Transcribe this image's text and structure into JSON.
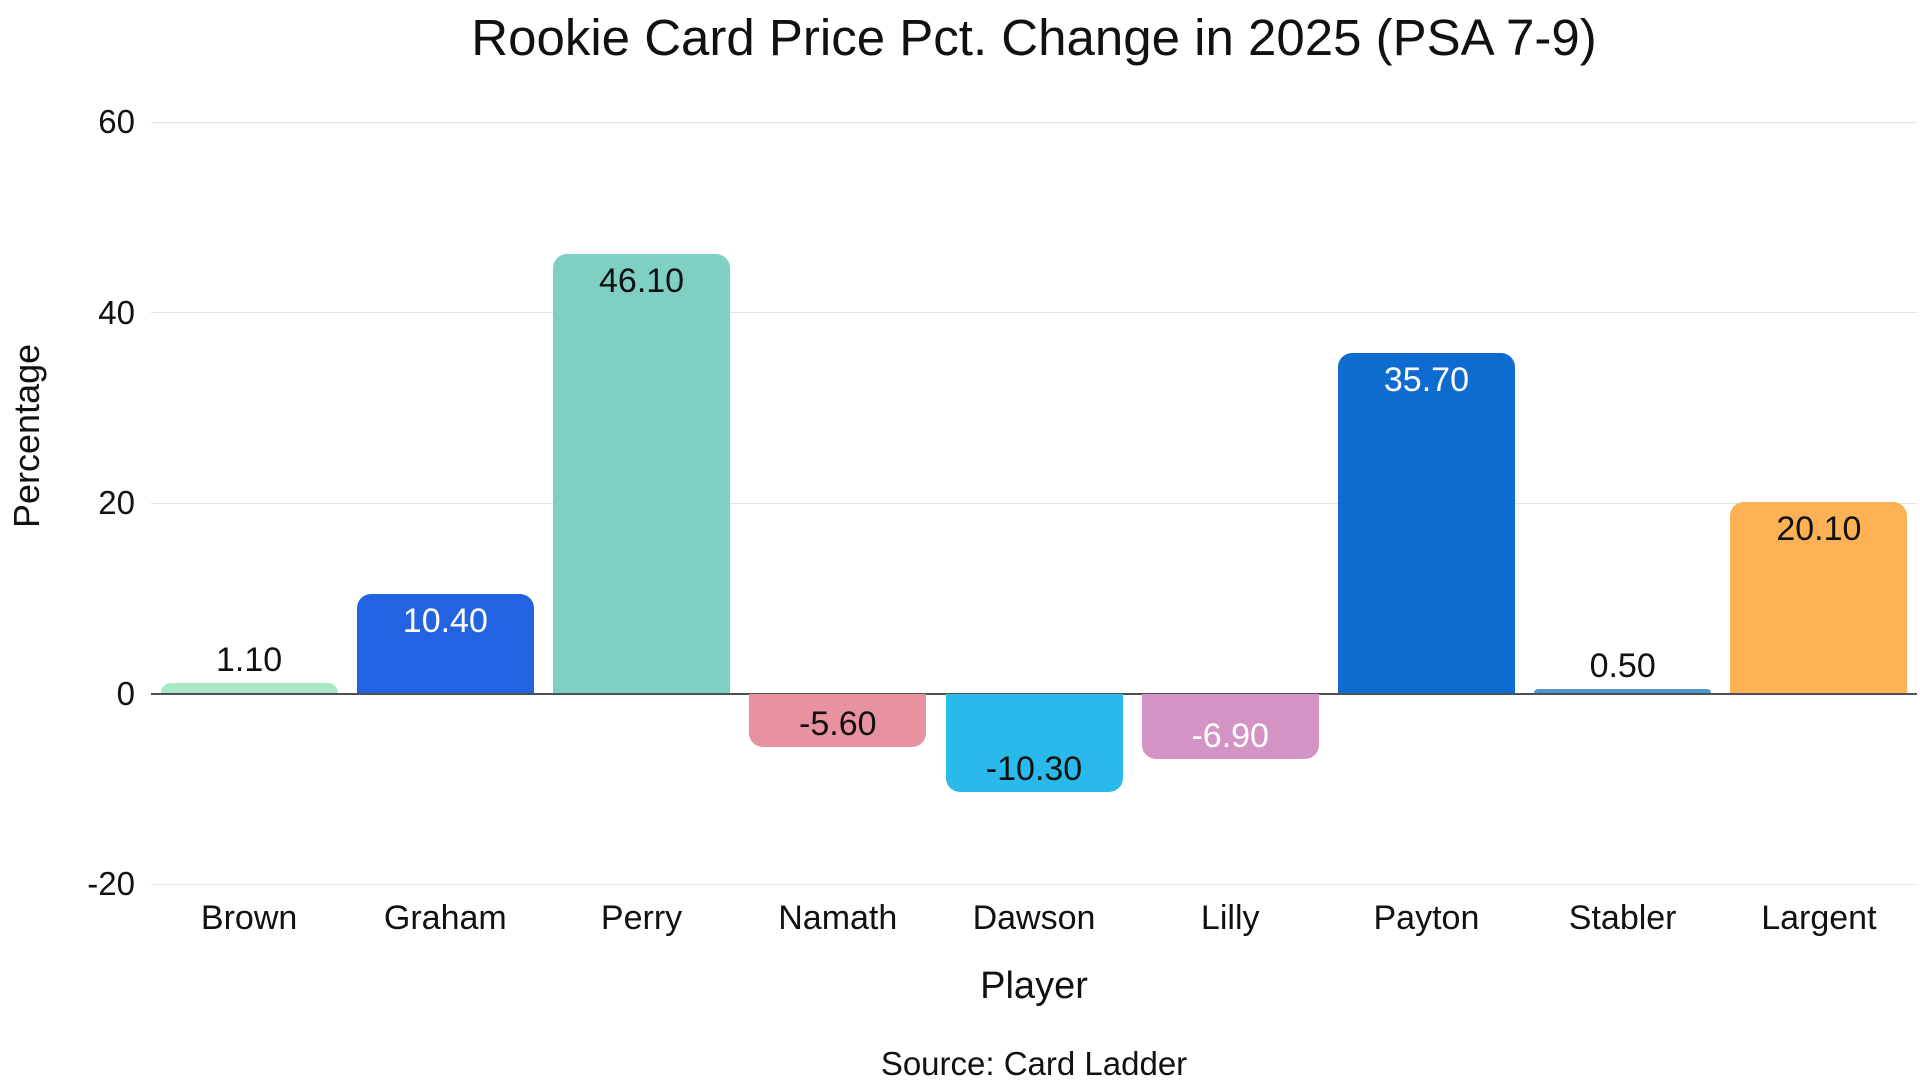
{
  "chart_data": {
    "type": "bar",
    "title": "Rookie Card Price Pct. Change in 2025 (PSA 7-9)",
    "xlabel": "Player",
    "ylabel": "Percentage",
    "source": "Source: Card Ladder",
    "categories": [
      "Brown",
      "Graham",
      "Perry",
      "Namath",
      "Dawson",
      "Lilly",
      "Payton",
      "Stabler",
      "Largent"
    ],
    "values": [
      1.1,
      10.4,
      46.1,
      -5.6,
      -10.3,
      -6.9,
      35.7,
      0.5,
      20.1
    ],
    "value_labels": [
      "1.10",
      "10.40",
      "46.10",
      "-5.60",
      "-10.30",
      "-6.90",
      "35.70",
      "0.50",
      "20.10"
    ],
    "bar_colors": [
      "#A9E8C4",
      "#2363E1",
      "#7ED0C2",
      "#E9929F",
      "#29B9EA",
      "#D394C5",
      "#0E6CD0",
      "#4E96CB",
      "#FBB154"
    ],
    "label_colors": [
      "#111111",
      "#FFFFFF",
      "#111111",
      "#111111",
      "#111111",
      "#FFFFFF",
      "#FFFFFF",
      "#111111",
      "#111111"
    ],
    "label_position": [
      "outside",
      "inside",
      "inside",
      "inside",
      "inside",
      "inside",
      "inside",
      "outside",
      "inside"
    ],
    "yticks": [
      60,
      40,
      20,
      0,
      -20
    ],
    "ylim": [
      -20,
      60
    ],
    "grid": "horizontal",
    "legend": "none",
    "background_color": "#FFFFFF",
    "gridline_color": "#E2E2E2",
    "zeroline_color": "#4D5156",
    "text_color": "#111111"
  }
}
